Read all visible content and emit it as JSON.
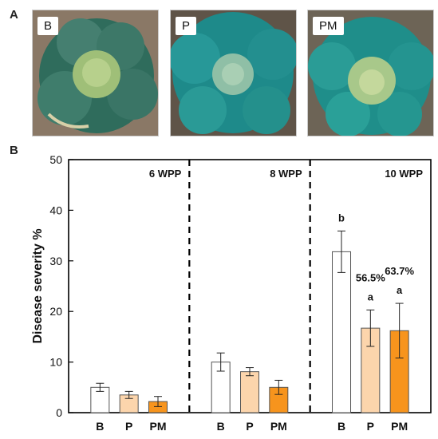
{
  "panels": {
    "a_label": "A",
    "b_label": "B"
  },
  "photos": [
    {
      "label": "B",
      "leaf_color": "#2f6c5c",
      "head_color": "#9fbf78",
      "soil_color": "#8a7866",
      "edge": "#d8d0a8"
    },
    {
      "label": "P",
      "leaf_color": "#1e8a8a",
      "head_color": "#8fbfa6",
      "soil_color": "#5f5448",
      "edge": "#3aa0a0"
    },
    {
      "label": "PM",
      "leaf_color": "#1f8e8a",
      "head_color": "#a8c88a",
      "soil_color": "#6d6456",
      "edge": "#3ba6a0"
    }
  ],
  "chart_data": {
    "type": "bar",
    "ylabel": "Disease severity %",
    "ylim": [
      0,
      50
    ],
    "yticks": [
      0,
      10,
      20,
      30,
      40,
      50
    ],
    "groups": [
      {
        "title": "6 WPP",
        "categories": [
          "B",
          "P",
          "PM"
        ],
        "values": [
          5.0,
          3.5,
          2.2
        ],
        "errors": [
          0.8,
          0.7,
          1.0
        ],
        "letters": [
          "",
          "",
          ""
        ],
        "percent_labels": [
          "",
          "",
          ""
        ]
      },
      {
        "title": "8 WPP",
        "categories": [
          "B",
          "P",
          "PM"
        ],
        "values": [
          10.0,
          8.1,
          5.0
        ],
        "errors": [
          1.8,
          0.8,
          1.4
        ],
        "letters": [
          "",
          "",
          ""
        ],
        "percent_labels": [
          "",
          "",
          ""
        ]
      },
      {
        "title": "10 WPP",
        "categories": [
          "B",
          "P",
          "PM"
        ],
        "values": [
          31.8,
          16.7,
          16.2
        ],
        "errors": [
          4.1,
          3.6,
          5.4
        ],
        "letters": [
          "b",
          "a",
          "a"
        ],
        "percent_labels": [
          "",
          "56.5%",
          "63.7%"
        ]
      }
    ],
    "colors": {
      "B": "#ffffff",
      "P": "#fcd5ac",
      "PM": "#f7941d"
    }
  }
}
